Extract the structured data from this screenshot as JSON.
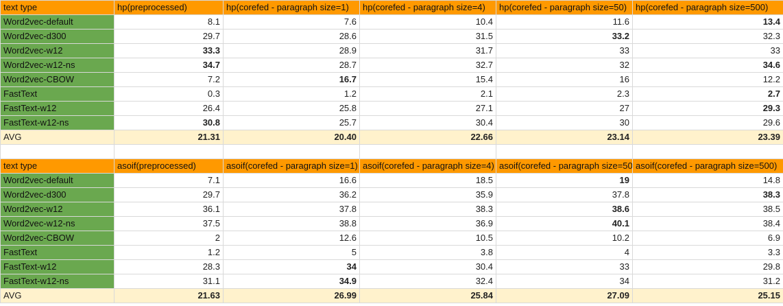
{
  "tables": [
    {
      "headers": [
        "text type",
        "hp(preprocessed)",
        "hp(corefed - paragraph size=1)",
        "hp(corefed - paragraph size=4)",
        "hp(corefed - paragraph size=50)",
        "hp(corefed - paragraph size=500)"
      ],
      "rows": [
        {
          "label": "Word2vec-default",
          "values": [
            "8.1",
            "7.6",
            "10.4",
            "11.6",
            "13.4"
          ],
          "bold": [
            false,
            false,
            false,
            false,
            true
          ]
        },
        {
          "label": "Word2vec-d300",
          "values": [
            "29.7",
            "28.6",
            "31.5",
            "33.2",
            "32.3"
          ],
          "bold": [
            false,
            false,
            false,
            true,
            false
          ]
        },
        {
          "label": "Word2vec-w12",
          "values": [
            "33.3",
            "28.9",
            "31.7",
            "33",
            "33"
          ],
          "bold": [
            true,
            false,
            false,
            false,
            false
          ]
        },
        {
          "label": "Word2vec-w12-ns",
          "values": [
            "34.7",
            "28.7",
            "32.7",
            "32",
            "34.6"
          ],
          "bold": [
            true,
            false,
            false,
            false,
            true
          ]
        },
        {
          "label": "Word2vec-CBOW",
          "values": [
            "7.2",
            "16.7",
            "15.4",
            "16",
            "12.2"
          ],
          "bold": [
            false,
            true,
            false,
            false,
            false
          ]
        },
        {
          "label": "FastText",
          "values": [
            "0.3",
            "1.2",
            "2.1",
            "2.3",
            "2.7"
          ],
          "bold": [
            false,
            false,
            false,
            false,
            true
          ]
        },
        {
          "label": "FastText-w12",
          "values": [
            "26.4",
            "25.8",
            "27.1",
            "27",
            "29.3"
          ],
          "bold": [
            false,
            false,
            false,
            false,
            true
          ]
        },
        {
          "label": "FastText-w12-ns",
          "values": [
            "30.8",
            "25.7",
            "30.4",
            "30",
            "29.6"
          ],
          "bold": [
            true,
            false,
            false,
            false,
            false
          ]
        }
      ],
      "avg": {
        "label": "AVG",
        "values": [
          "21.31",
          "20.40",
          "22.66",
          "23.14",
          "23.39"
        ]
      }
    },
    {
      "headers": [
        "text type",
        "asoif(preprocessed)",
        "asoif(corefed - paragraph size=1)",
        "asoif(corefed - paragraph size=4)",
        "asoif(corefed - paragraph size=50",
        "asoif(corefed - paragraph size=500)"
      ],
      "rows": [
        {
          "label": "Word2vec-default",
          "values": [
            "7.1",
            "16.6",
            "18.5",
            "19",
            "14.8"
          ],
          "bold": [
            false,
            false,
            false,
            true,
            false
          ]
        },
        {
          "label": "Word2vec-d300",
          "values": [
            "29.7",
            "36.2",
            "35.9",
            "37.8",
            "38.3"
          ],
          "bold": [
            false,
            false,
            false,
            false,
            true
          ]
        },
        {
          "label": "Word2vec-w12",
          "values": [
            "36.1",
            "37.8",
            "38.3",
            "38.6",
            "38.5"
          ],
          "bold": [
            false,
            false,
            false,
            true,
            false
          ]
        },
        {
          "label": "Word2vec-w12-ns",
          "values": [
            "37.5",
            "38.8",
            "36.9",
            "40.1",
            "38.4"
          ],
          "bold": [
            false,
            false,
            false,
            true,
            false
          ]
        },
        {
          "label": "Word2vec-CBOW",
          "values": [
            "2",
            "12.6",
            "10.5",
            "10.2",
            "6.9"
          ],
          "bold": [
            false,
            false,
            false,
            false,
            false
          ]
        },
        {
          "label": "FastText",
          "values": [
            "1.2",
            "5",
            "3.8",
            "4",
            "3.3"
          ],
          "bold": [
            false,
            false,
            false,
            false,
            false
          ]
        },
        {
          "label": "FastText-w12",
          "values": [
            "28.3",
            "34",
            "30.4",
            "33",
            "29.8"
          ],
          "bold": [
            false,
            true,
            false,
            false,
            false
          ]
        },
        {
          "label": "FastText-w12-ns",
          "values": [
            "31.1",
            "34.9",
            "32.4",
            "34",
            "31.2"
          ],
          "bold": [
            false,
            true,
            false,
            false,
            false
          ]
        }
      ],
      "avg": {
        "label": "AVG",
        "values": [
          "21.63",
          "26.99",
          "25.84",
          "27.09",
          "25.15"
        ]
      }
    }
  ],
  "colors": {
    "header_bg": "#ff9900",
    "label_bg": "#6aa84f",
    "avg_bg": "#fff2cc",
    "grid": "#d9d9d9"
  }
}
